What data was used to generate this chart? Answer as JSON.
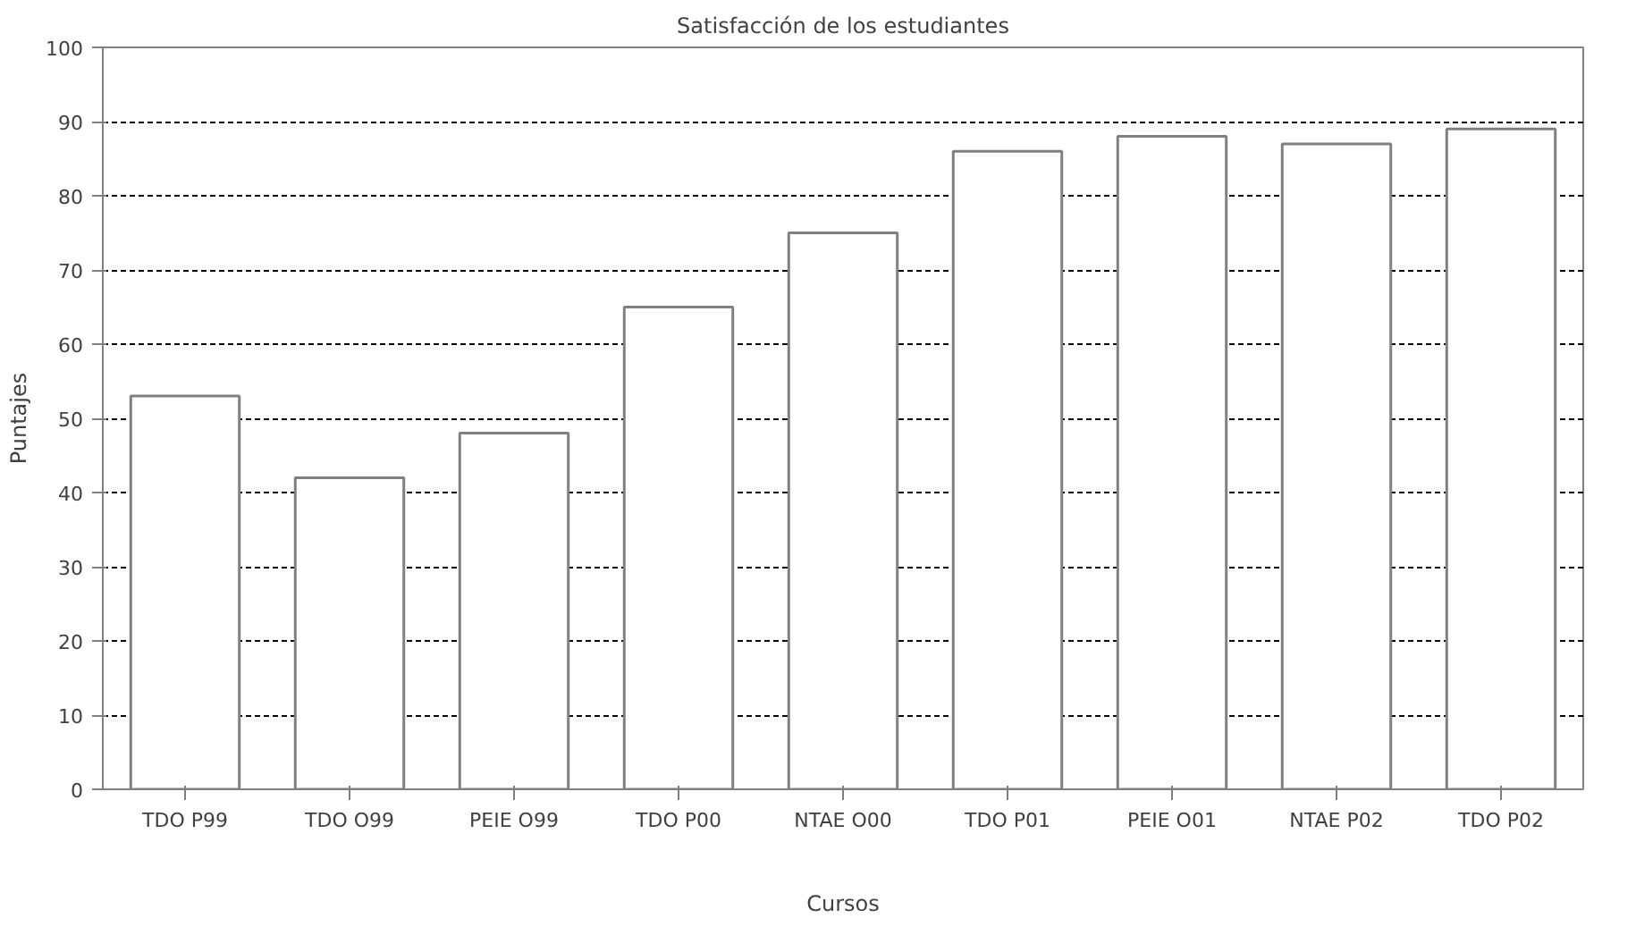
{
  "chart_data": {
    "type": "bar",
    "title": "Satisfacción de los estudiantes",
    "xlabel": "Cursos",
    "ylabel": "Puntajes",
    "categories": [
      "TDO P99",
      "TDO O99",
      "PEIE O99",
      "TDO P00",
      "NTAE O00",
      "TDO P01",
      "PEIE O01",
      "NTAE P02",
      "TDO P02"
    ],
    "values": [
      53,
      42,
      48,
      65,
      75,
      86,
      88,
      87,
      89
    ],
    "color": "#ffffff",
    "ylim": [
      0,
      100
    ],
    "yticks": [
      0,
      10,
      20,
      30,
      40,
      50,
      60,
      70,
      80,
      90,
      100
    ],
    "grid": "y"
  }
}
